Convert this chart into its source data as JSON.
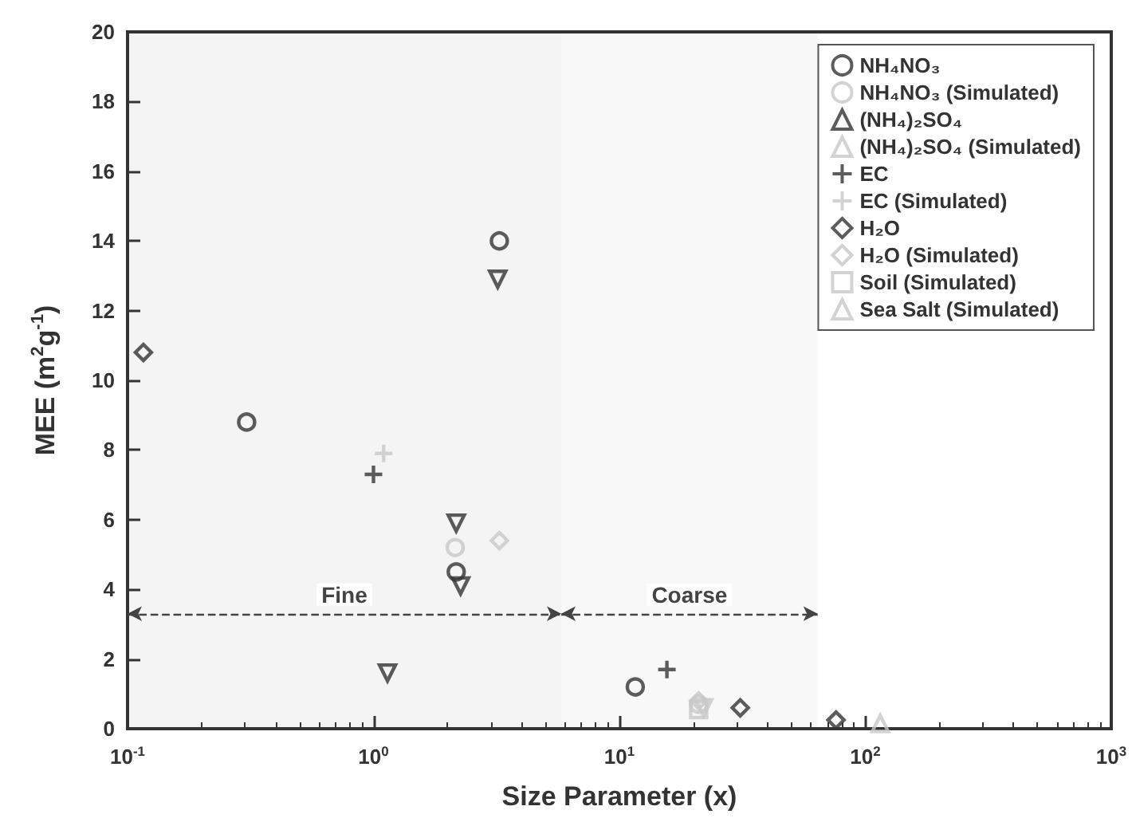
{
  "chart_data": {
    "type": "scatter",
    "xlabel": "Size Parameter (x)",
    "ylabel": "MEE (m$^{2}$g$^{-1}$)",
    "log": "x",
    "xlim": [
      0.1,
      1000
    ],
    "xticks": [
      {
        "value": 0.1,
        "label": "10$^{-1}$"
      },
      {
        "value": 1,
        "label": "10$^{0}$"
      },
      {
        "value": 10,
        "label": "10$^{1}$"
      },
      {
        "value": 100,
        "label": "10$^{2}$"
      },
      {
        "value": 1000,
        "label": "10$^{3}$"
      }
    ],
    "ylim": [
      0,
      20
    ],
    "yticks": [
      0,
      2,
      4,
      6,
      8,
      10,
      12,
      14,
      16,
      18,
      20
    ],
    "grid": false,
    "legend": "top right",
    "bands": [
      {
        "axis": "x",
        "from": 0.1,
        "to": 5.8,
        "label": "Fine",
        "color": "#444444"
      },
      {
        "axis": "x",
        "from": 5.8,
        "to": 64,
        "label": "Coarse",
        "color": "#444444"
      }
    ],
    "series": [
      {
        "name": "NH₄NO₃",
        "color": "#333333",
        "marker": "circle",
        "x": [
          0.305,
          3.25,
          2.17,
          11.6
        ],
        "values": [
          8.8,
          14.0,
          4.5,
          1.2
        ]
      },
      {
        "name": "NH₄NO₃ (Simulated)",
        "color": "#c8c8c8",
        "marker": "circle",
        "x": [
          2.15,
          21
        ],
        "values": [
          5.2,
          0.7
        ]
      },
      {
        "name": "(NH₄)₂SO₄",
        "color": "#333333",
        "marker": "triangle-down",
        "x": [
          3.2,
          2.17,
          2.26,
          1.14
        ],
        "values": [
          12.9,
          5.9,
          4.1,
          1.6
        ]
      },
      {
        "name": "(NH₄)₂SO₄ (Simulated)",
        "color": "#c8c8c8",
        "marker": "triangle-down",
        "x": [
          22
        ],
        "values": [
          0.6
        ]
      },
      {
        "name": "EC",
        "color": "#333333",
        "marker": "cross",
        "x": [
          1.0,
          15.6
        ],
        "values": [
          7.3,
          1.7
        ]
      },
      {
        "name": "EC (Simulated)",
        "color": "#c8c8c8",
        "marker": "cross",
        "x": [
          1.1
        ],
        "values": [
          7.9
        ]
      },
      {
        "name": "H₂O",
        "color": "#333333",
        "marker": "diamond",
        "x": [
          0.116,
          31,
          76
        ],
        "values": [
          10.8,
          0.6,
          0.25
        ]
      },
      {
        "name": "H₂O (Simulated)",
        "color": "#c8c8c8",
        "marker": "diamond",
        "x": [
          3.25,
          21
        ],
        "values": [
          5.4,
          0.8
        ]
      },
      {
        "name": "Soil (Simulated)",
        "color": "#c8c8c8",
        "marker": "square",
        "x": [
          21
        ],
        "values": [
          0.55
        ]
      },
      {
        "name": "Sea Salt (Simulated)",
        "color": "#c8c8c8",
        "marker": "triangle",
        "x": [
          115
        ],
        "values": [
          0.15
        ]
      }
    ]
  }
}
